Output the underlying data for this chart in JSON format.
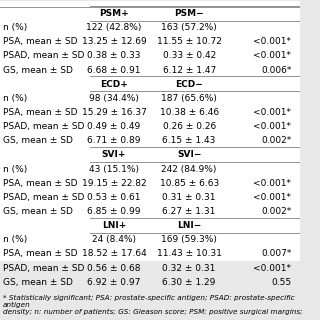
{
  "bg_color": "#e8e8e8",
  "table_bg": "#f0f0f0",
  "header_bg": "#d0d0d0",
  "font_size": 6.5,
  "small_font_size": 5.2,
  "sections": [
    {
      "header_left": "PSM+",
      "header_right": "PSM−",
      "rows": [
        [
          "n (%)",
          "122 (42.8%)",
          "163 (57.2%)",
          ""
        ],
        [
          "PSA, mean ± SD",
          "13.25 ± 12.69",
          "11.55 ± 10.72",
          "<0.001*"
        ],
        [
          "PSAD, mean ± SD",
          "0.38 ± 0.33",
          "0.33 ± 0.42",
          "<0.001*"
        ],
        [
          "GS, mean ± SD",
          "6.68 ± 0.91",
          "6.12 ± 1.47",
          "0.006*"
        ]
      ]
    },
    {
      "header_left": "ECD+",
      "header_right": "ECD−",
      "rows": [
        [
          "n (%)",
          "98 (34.4%)",
          "187 (65.6%)",
          ""
        ],
        [
          "PSA, mean ± SD",
          "15.29 ± 16.37",
          "10.38 ± 6.46",
          "<0.001*"
        ],
        [
          "PSAD, mean ± SD",
          "0.49 ± 0.49",
          "0.26 ± 0.26",
          "<0.001*"
        ],
        [
          "GS, mean ± SD",
          "6.71 ± 0.89",
          "6.15 ± 1.43",
          "0.002*"
        ]
      ]
    },
    {
      "header_left": "SVI+",
      "header_right": "SVI−",
      "rows": [
        [
          "n (%)",
          "43 (15.1%)",
          "242 (84.9%)",
          ""
        ],
        [
          "PSA, mean ± SD",
          "19.15 ± 22.82",
          "10.85 ± 6.63",
          "<0.001*"
        ],
        [
          "PSAD, mean ± SD",
          "0.53 ± 0.61",
          "0.31 ± 0.31",
          "<0.001*"
        ],
        [
          "GS, mean ± SD",
          "6.85 ± 0.99",
          "6.27 ± 1.31",
          "0.002*"
        ]
      ]
    },
    {
      "header_left": "LNI+",
      "header_right": "LNI−",
      "rows": [
        [
          "n (%)",
          "24 (8.4%)",
          "169 (59.3%)",
          ""
        ],
        [
          "PSA, mean ± SD",
          "18.52 ± 17.64",
          "11.43 ± 10.31",
          "0.007*"
        ],
        [
          "PSAD, mean ± SD",
          "0.56 ± 0.68",
          "0.32 ± 0.31",
          "<0.001*"
        ],
        [
          "GS, mean ± SD",
          "6.92 ± 0.97",
          "6.30 ± 1.29",
          "0.55"
        ]
      ]
    }
  ],
  "footnote": "* Statistically significant; PSA: prostate-specific antigen; PSAD: prostate-specific antigen\ndensity; n: number of patients; GS: Gleason score; PSM: positive surgical margins;"
}
